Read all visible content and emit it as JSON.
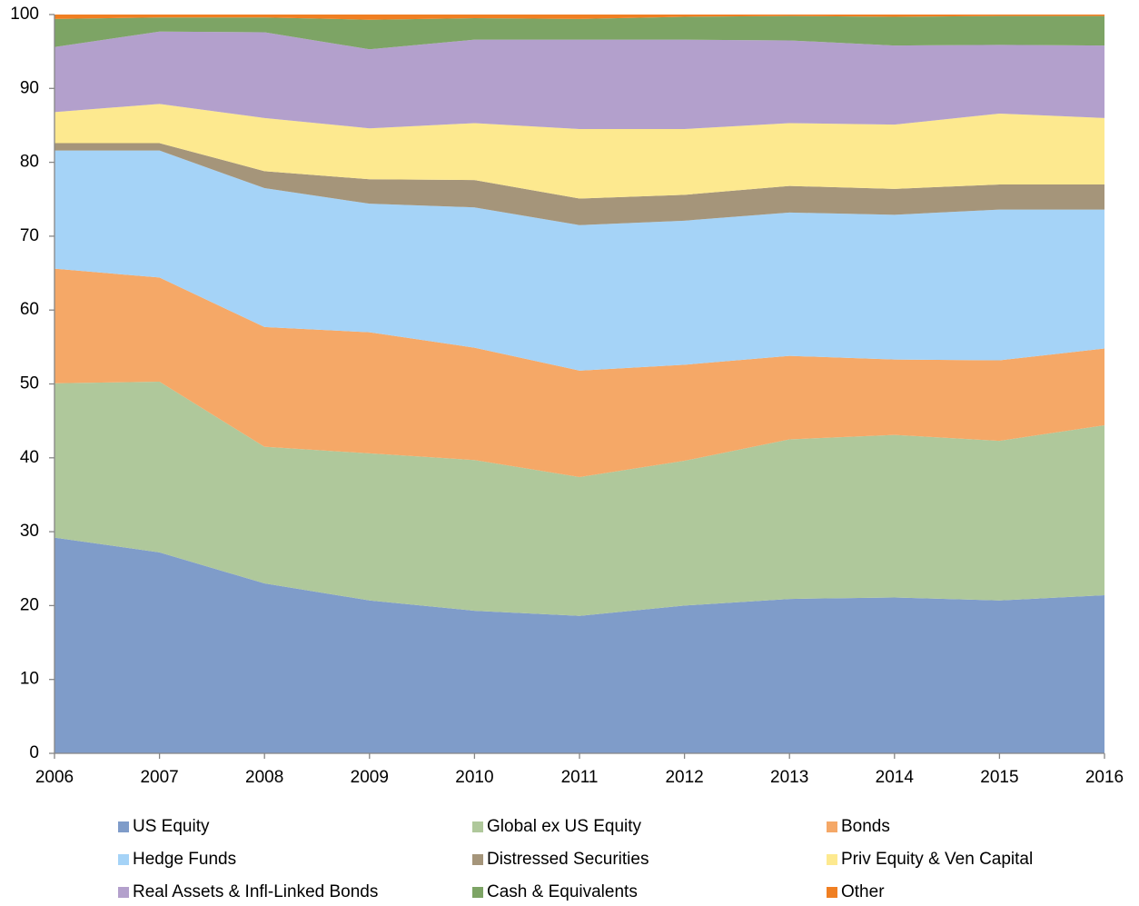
{
  "chart_data": {
    "type": "stacked_area",
    "x": [
      2006,
      2007,
      2008,
      2009,
      2010,
      2011,
      2012,
      2013,
      2014,
      2015,
      2016
    ],
    "xlim": [
      2006,
      2016
    ],
    "xticks": [
      2006,
      2007,
      2008,
      2009,
      2010,
      2011,
      2012,
      2013,
      2014,
      2015,
      2016
    ],
    "ylim": [
      0,
      100
    ],
    "yticks": [
      0,
      10,
      20,
      30,
      40,
      50,
      60,
      70,
      80,
      90,
      100
    ],
    "grid": false,
    "legend": "bottom",
    "series": [
      {
        "name": "US Equity",
        "color": "#7f9cc9",
        "values": [
          29.2,
          27.2,
          23.0,
          20.7,
          19.3,
          18.6,
          20.0,
          20.9,
          21.1,
          20.7,
          21.4
        ]
      },
      {
        "name": "Global ex US Equity",
        "color": "#afc89b",
        "values": [
          20.9,
          23.1,
          18.5,
          19.9,
          20.4,
          18.8,
          19.6,
          21.6,
          22.0,
          21.6,
          23.0
        ]
      },
      {
        "name": "Bonds",
        "color": "#f5a867",
        "values": [
          15.5,
          14.1,
          16.2,
          16.4,
          15.2,
          14.4,
          13.0,
          11.3,
          10.2,
          10.9,
          10.4
        ]
      },
      {
        "name": "Hedge Funds",
        "color": "#a5d3f7",
        "values": [
          16.0,
          17.2,
          18.8,
          17.4,
          19.0,
          19.7,
          19.5,
          19.4,
          19.6,
          20.4,
          18.8
        ]
      },
      {
        "name": "Distressed Securities",
        "color": "#a5957a",
        "values": [
          1.0,
          1.0,
          2.3,
          3.3,
          3.7,
          3.6,
          3.5,
          3.6,
          3.5,
          3.4,
          3.4
        ]
      },
      {
        "name": "Priv Equity & Ven Capital",
        "color": "#fde98f",
        "values": [
          4.2,
          5.3,
          7.2,
          6.9,
          7.7,
          9.4,
          8.9,
          8.5,
          8.7,
          9.6,
          9.0
        ]
      },
      {
        "name": "Real Assets & Infl-Linked Bonds",
        "color": "#b3a0cc",
        "values": [
          8.8,
          9.8,
          11.6,
          10.7,
          11.3,
          12.1,
          12.1,
          11.2,
          10.7,
          9.3,
          9.8
        ]
      },
      {
        "name": "Cash & Equivalents",
        "color": "#7da465",
        "values": [
          3.8,
          1.9,
          2.0,
          4.0,
          2.9,
          2.8,
          3.1,
          3.3,
          3.9,
          3.9,
          4.0
        ]
      },
      {
        "name": "Other",
        "color": "#f07f22",
        "values": [
          0.6,
          0.4,
          0.4,
          0.7,
          0.5,
          0.6,
          0.3,
          0.2,
          0.3,
          0.2,
          0.2
        ]
      }
    ]
  }
}
